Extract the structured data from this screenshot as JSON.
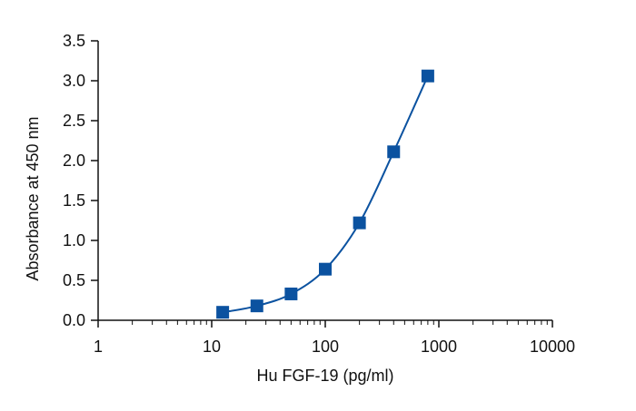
{
  "chart_data": {
    "type": "scatter",
    "xscale": "log",
    "xlabel": "Hu FGF-19 (pg/ml)",
    "ylabel": "Absorbance at 450 nm",
    "xlim": [
      1,
      10000
    ],
    "ylim": [
      0,
      3.5
    ],
    "x_ticks": [
      1,
      10,
      100,
      1000,
      10000
    ],
    "x_tick_labels": [
      "1",
      "10",
      "100",
      "1000",
      "10000"
    ],
    "y_ticks": [
      0,
      0.5,
      1,
      1.5,
      2,
      2.5,
      3,
      3.5
    ],
    "y_tick_labels": [
      "0.0",
      "0.5",
      "1.0",
      "1.5",
      "2.0",
      "2.5",
      "3.0",
      "3.5"
    ],
    "grid": false,
    "series": [
      {
        "marker": "square",
        "color": "#0b52a0",
        "fit_line": true,
        "x": [
          12.5,
          25,
          50,
          100,
          200,
          400,
          800
        ],
        "y": [
          0.1,
          0.18,
          0.33,
          0.64,
          1.22,
          2.11,
          3.06
        ]
      }
    ]
  }
}
